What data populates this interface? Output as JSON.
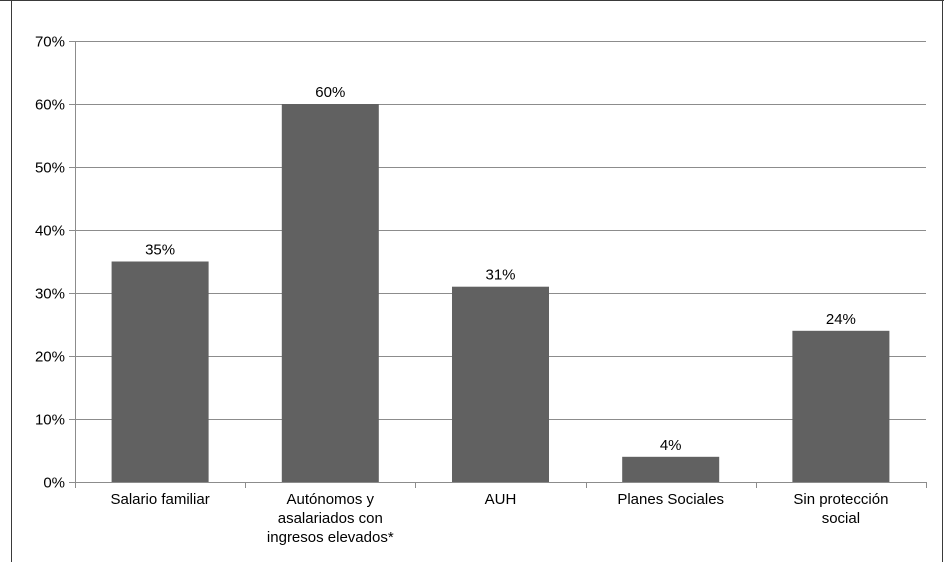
{
  "chart_data": {
    "type": "bar",
    "categories": [
      [
        "Salario familiar"
      ],
      [
        "Autónomos y",
        "asalariados con",
        "ingresos elevados*"
      ],
      [
        "AUH"
      ],
      [
        "Planes Sociales"
      ],
      [
        "Sin protección",
        "social"
      ]
    ],
    "values": [
      35,
      60,
      31,
      4,
      24
    ],
    "data_labels": [
      "35%",
      "60%",
      "31%",
      "4%",
      "24%"
    ],
    "ylim": [
      0,
      70
    ],
    "y_ticks": [
      0,
      10,
      20,
      30,
      40,
      50,
      60,
      70
    ],
    "y_tick_labels": [
      "0%",
      "10%",
      "20%",
      "30%",
      "40%",
      "50%",
      "60%",
      "70%"
    ],
    "grid": true,
    "title": "",
    "xlabel": "",
    "ylabel": "",
    "bar_color": "#616161",
    "grid_color": "#8c8c8c",
    "axis_color": "#8c8c8c"
  }
}
